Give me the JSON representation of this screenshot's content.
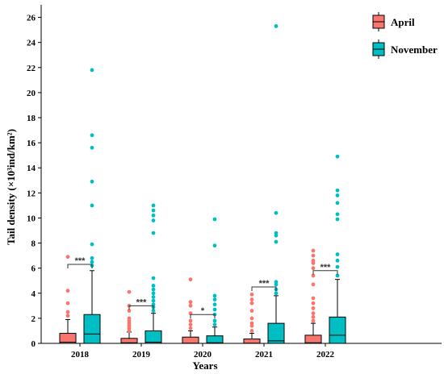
{
  "chart_data": {
    "type": "box",
    "xlabel": "Years",
    "ylabel": "Tail density (×10³ind/km²)",
    "ylim": [
      0,
      27
    ],
    "yticks": [
      0,
      2,
      4,
      6,
      8,
      10,
      12,
      14,
      16,
      18,
      20,
      22,
      24,
      26
    ],
    "categories": [
      "2018",
      "2019",
      "2020",
      "2021",
      "2022"
    ],
    "legend_position": "top-right",
    "series": [
      {
        "name": "April",
        "color": "#F8766D",
        "boxes": [
          {
            "whisker_low": 0,
            "q1": 0,
            "median": 0.1,
            "q3": 0.8,
            "whisker_high": 1.9,
            "outliers": [
              2.2,
              2.5,
              3.2,
              4.2,
              6.9
            ]
          },
          {
            "whisker_low": 0,
            "q1": 0,
            "median": 0.05,
            "q3": 0.4,
            "whisker_high": 0.9,
            "outliers": [
              1.0,
              1.2,
              1.4,
              1.6,
              1.8,
              2.0,
              2.6,
              3.0,
              4.1
            ]
          },
          {
            "whisker_low": 0,
            "q1": 0,
            "median": 0.02,
            "q3": 0.5,
            "whisker_high": 1.0,
            "outliers": [
              1.2,
              1.5,
              1.8,
              2.4,
              3.0,
              3.3,
              5.1
            ]
          },
          {
            "whisker_low": 0,
            "q1": 0,
            "median": 0.02,
            "q3": 0.35,
            "whisker_high": 0.8,
            "outliers": [
              1.0,
              1.4,
              1.6,
              2.0,
              2.6,
              3.2,
              3.5,
              3.9
            ]
          },
          {
            "whisker_low": 0,
            "q1": 0,
            "median": 0.05,
            "q3": 0.65,
            "whisker_high": 1.6,
            "outliers": [
              1.8,
              2.1,
              2.4,
              2.8,
              3.2,
              3.6,
              4.7,
              5.4,
              6.0,
              6.4,
              6.6,
              7.0,
              7.4
            ]
          }
        ]
      },
      {
        "name": "November",
        "color": "#00BFC4",
        "boxes": [
          {
            "whisker_low": 0,
            "q1": 0,
            "median": 0.75,
            "q3": 2.3,
            "whisker_high": 5.8,
            "outliers": [
              6.2,
              6.5,
              6.8,
              7.9,
              11.0,
              12.9,
              15.6,
              16.6,
              21.8
            ]
          },
          {
            "whisker_low": 0,
            "q1": 0,
            "median": 0.1,
            "q3": 1.0,
            "whisker_high": 2.4,
            "outliers": [
              2.6,
              2.9,
              3.1,
              3.4,
              3.7,
              4.0,
              4.3,
              4.6,
              5.2,
              8.8,
              9.8,
              10.2,
              10.6,
              11.0
            ]
          },
          {
            "whisker_low": 0,
            "q1": 0,
            "median": 0.05,
            "q3": 0.6,
            "whisker_high": 1.3,
            "outliers": [
              1.5,
              1.8,
              2.3,
              2.7,
              3.1,
              3.5,
              3.8,
              7.8,
              9.9
            ]
          },
          {
            "whisker_low": 0,
            "q1": 0,
            "median": 0.2,
            "q3": 1.6,
            "whisker_high": 3.8,
            "outliers": [
              4.0,
              4.3,
              4.7,
              4.9,
              8.1,
              8.6,
              8.8,
              10.4,
              25.3
            ]
          },
          {
            "whisker_low": 0,
            "q1": 0,
            "median": 0.65,
            "q3": 2.1,
            "whisker_high": 5.1,
            "outliers": [
              5.4,
              6.1,
              6.6,
              7.1,
              9.9,
              10.3,
              11.2,
              11.8,
              12.2,
              14.9
            ]
          }
        ]
      }
    ],
    "significance": [
      {
        "label": "***",
        "y": 6.3
      },
      {
        "label": "***",
        "y": 3.0
      },
      {
        "label": "*",
        "y": 2.3
      },
      {
        "label": "***",
        "y": 4.5
      },
      {
        "label": "***",
        "y": 5.8
      }
    ]
  }
}
